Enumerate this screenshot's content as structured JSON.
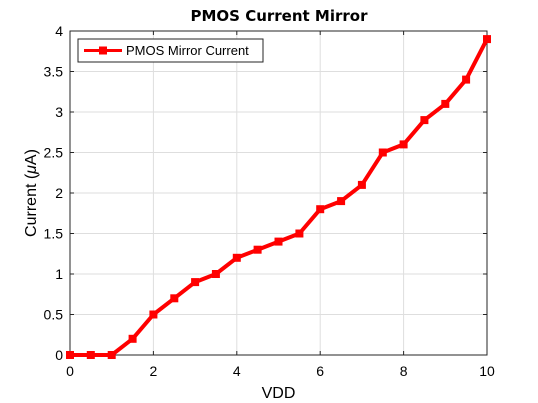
{
  "chart_data": {
    "type": "line",
    "title": "PMOS Current Mirror",
    "xlabel": "VDD",
    "ylabel": "Current (uA)",
    "xlim": [
      0,
      10
    ],
    "ylim": [
      0,
      4
    ],
    "grid": true,
    "legend_position": "top-left",
    "x_ticks": [
      "0",
      "2",
      "4",
      "6",
      "8",
      "10"
    ],
    "y_ticks": [
      "0",
      "0.5",
      "1",
      "1.5",
      "2",
      "2.5",
      "3",
      "3.5",
      "4"
    ],
    "series": [
      {
        "name": "PMOS Mirror Current",
        "color": "#ff0000",
        "marker": "square",
        "x": [
          0,
          0.5,
          1,
          1.5,
          2,
          2.5,
          3,
          3.5,
          4,
          4.5,
          5,
          5.5,
          6,
          6.5,
          7,
          7.5,
          8,
          8.5,
          9,
          9.5,
          10
        ],
        "y": [
          0,
          0,
          0,
          0.2,
          0.5,
          0.7,
          0.9,
          1.0,
          1.2,
          1.3,
          1.4,
          1.5,
          1.8,
          1.9,
          2.1,
          2.5,
          2.6,
          2.9,
          3.1,
          3.4,
          3.9
        ]
      }
    ]
  }
}
